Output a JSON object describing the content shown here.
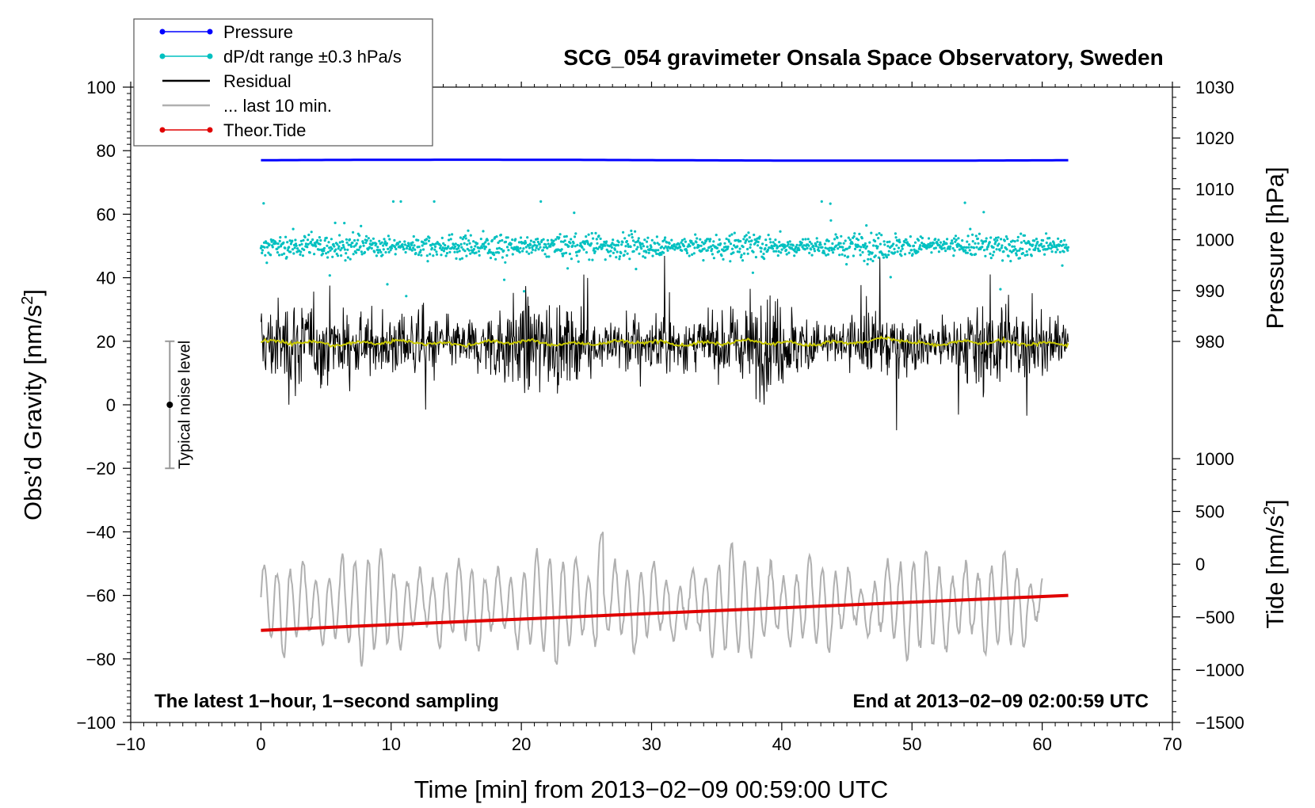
{
  "chart_data": {
    "type": "line",
    "title": "SCG_054 gravimeter Onsala Space Observatory, Sweden",
    "xlabel": "Time [min] from 2013−02−09 00:59:00 UTC",
    "ylabel_left": "Obs’d Gravity [nm/s",
    "ylabel_left_sup": "2",
    "ylabel_left_end": "]",
    "ylabel_right_top": "Pressure [hPa]",
    "ylabel_right_bottom": "Tide [nm/s",
    "ylabel_right_bottom_sup": "2",
    "ylabel_right_bottom_end": "]",
    "xlim": [
      -10,
      70
    ],
    "ylim_left": [
      -100,
      100
    ],
    "pressure_axis_range": [
      970,
      1030
    ],
    "tide_axis_range": [
      -1500,
      1000
    ],
    "x_ticks": [
      -10,
      0,
      10,
      20,
      30,
      40,
      50,
      60,
      70
    ],
    "x_tick_labels": [
      "−10",
      "0",
      "10",
      "20",
      "30",
      "40",
      "50",
      "60",
      "70"
    ],
    "y_ticks_left": [
      -100,
      -80,
      -60,
      -40,
      -20,
      0,
      20,
      40,
      60,
      80,
      100
    ],
    "y_tick_labels_left": [
      "−100",
      "−80",
      "−60",
      "−40",
      "−20",
      "0",
      "20",
      "40",
      "60",
      "80",
      "100"
    ],
    "pressure_ticks": [
      980,
      990,
      1000,
      1010,
      1020,
      1030
    ],
    "pressure_tick_labels": [
      "980",
      "990",
      "1000",
      "1010",
      "1020",
      "1030"
    ],
    "tide_ticks": [
      -1500,
      -1000,
      -500,
      0,
      500,
      1000
    ],
    "tide_tick_labels": [
      "−1500",
      "−1000",
      "−500",
      "0",
      "500",
      "1000"
    ],
    "legend": [
      {
        "label": "Pressure",
        "color": "#0000ff",
        "marker": true,
        "width": 1
      },
      {
        "label": "dP/dt range ±0.3 hPa/s",
        "color": "#00c0c0",
        "marker": true,
        "width": 1
      },
      {
        "label": "Residual",
        "color": "#000000",
        "marker": false,
        "width": 2
      },
      {
        "label": "... last 10 min.",
        "color": "#b0b0b0",
        "marker": false,
        "width": 2
      },
      {
        "label": "Theor.Tide",
        "color": "#e00000",
        "marker": true,
        "width": 1
      }
    ],
    "series": [
      {
        "name": "Pressure",
        "color": "#0000ff",
        "x_range": [
          0,
          62
        ],
        "approx_value_hPa": 1016.5,
        "approx_left_axis_value": 77
      },
      {
        "name": "dP/dt range ±0.3 hPa/s",
        "color": "#00c0c0",
        "x_range": [
          0,
          62
        ],
        "approx_center_left_axis": 50,
        "typical_spread": 3,
        "outlier_max": 64
      },
      {
        "name": "Residual",
        "color": "#000000",
        "x_range": [
          0,
          62
        ],
        "approx_center_left_axis": 19,
        "typical_range": [
          5,
          35
        ],
        "extremes": [
          -8,
          48
        ]
      },
      {
        "name": "Residual smoothed",
        "color": "#c8c800",
        "x_range": [
          0,
          62
        ],
        "approx_value_left_axis": 19.5
      },
      {
        "name": "... last 10 min.",
        "color": "#b0b0b0",
        "x_range": [
          0,
          60
        ],
        "approx_center_left_axis": -63,
        "typical_range": [
          -78,
          -50
        ],
        "extremes": [
          -86,
          -33
        ]
      },
      {
        "name": "Theor.Tide",
        "color": "#e00000",
        "x": [
          0,
          62
        ],
        "y_left_axis": [
          -71,
          -60
        ],
        "y_tide_nm_s2": [
          -630,
          -285
        ]
      }
    ],
    "noise_bar": {
      "label": "Typical noise level",
      "x": -7,
      "center": 0,
      "range": [
        -20,
        20
      ]
    },
    "annotations": {
      "bottom_left": "The latest 1−hour, 1−second sampling",
      "bottom_right": "End at 2013−02−09 02:00:59 UTC"
    }
  }
}
